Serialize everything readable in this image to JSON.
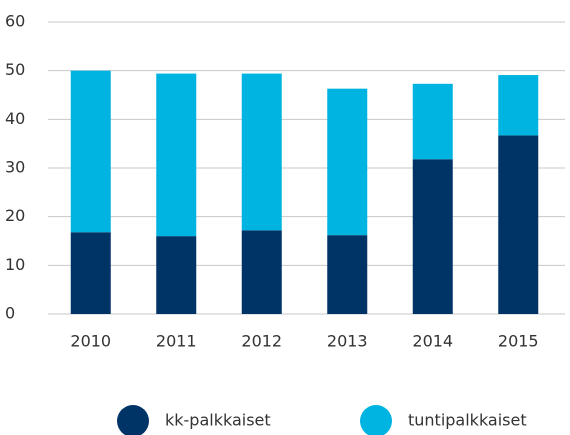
{
  "chart_data": {
    "type": "stacked-bar",
    "categories": [
      "2010",
      "2011",
      "2012",
      "2013",
      "2014",
      "2015"
    ],
    "series": [
      {
        "name": "kk-palkkaiset",
        "color": "#003466",
        "values": [
          16.8,
          16,
          17.2,
          16.2,
          31.8,
          36.7
        ]
      },
      {
        "name": "tuntipalkkaiset",
        "color": "#00b4e1",
        "values": [
          33.2,
          33.4,
          32.2,
          30.1,
          15.5,
          12.4
        ]
      }
    ],
    "ylim": [
      0,
      60
    ],
    "yticks": [
      0,
      10,
      20,
      30,
      40,
      50,
      60
    ],
    "grid": true,
    "legend": "bottom"
  }
}
